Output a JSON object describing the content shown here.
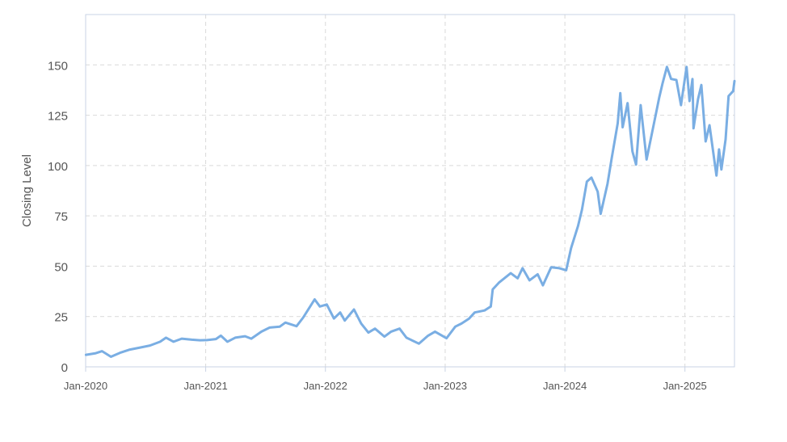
{
  "colors": {
    "line": "#7aaee3",
    "grid": "#d9d9d9",
    "plot_border": "#c9d3e4",
    "tick_text": "#555555"
  },
  "chart_data": {
    "type": "line",
    "title": "",
    "xlabel": "",
    "ylabel": "Closing Level",
    "x_type": "date",
    "xlim": [
      "2020-01-01",
      "2025-06-01"
    ],
    "ylim": [
      0,
      175
    ],
    "grid": true,
    "legend": "none",
    "x_ticks": [
      {
        "value": "2020-01-01",
        "label": "Jan-2020"
      },
      {
        "value": "2021-01-01",
        "label": "Jan-2021"
      },
      {
        "value": "2022-01-01",
        "label": "Jan-2022"
      },
      {
        "value": "2023-01-01",
        "label": "Jan-2023"
      },
      {
        "value": "2024-01-01",
        "label": "Jan-2024"
      },
      {
        "value": "2025-01-01",
        "label": "Jan-2025"
      }
    ],
    "y_ticks": [
      0,
      25,
      50,
      75,
      100,
      125,
      150
    ],
    "series": [
      {
        "values": [
          [
            "2020-01-02",
            6.0
          ],
          [
            "2020-02-01",
            6.8
          ],
          [
            "2020-02-20",
            7.8
          ],
          [
            "2020-03-18",
            5.0
          ],
          [
            "2020-04-15",
            7.0
          ],
          [
            "2020-05-15",
            8.6
          ],
          [
            "2020-06-15",
            9.6
          ],
          [
            "2020-07-15",
            10.6
          ],
          [
            "2020-08-15",
            12.5
          ],
          [
            "2020-09-02",
            14.5
          ],
          [
            "2020-09-25",
            12.5
          ],
          [
            "2020-10-20",
            14.0
          ],
          [
            "2020-11-20",
            13.5
          ],
          [
            "2020-12-15",
            13.2
          ],
          [
            "2021-01-05",
            13.3
          ],
          [
            "2021-02-01",
            13.8
          ],
          [
            "2021-02-16",
            15.5
          ],
          [
            "2021-03-08",
            12.5
          ],
          [
            "2021-04-01",
            14.5
          ],
          [
            "2021-05-01",
            15.2
          ],
          [
            "2021-05-20",
            14.0
          ],
          [
            "2021-06-20",
            17.5
          ],
          [
            "2021-07-15",
            19.5
          ],
          [
            "2021-08-15",
            20.0
          ],
          [
            "2021-09-01",
            22.0
          ],
          [
            "2021-10-05",
            20.2
          ],
          [
            "2021-10-25",
            24.5
          ],
          [
            "2021-11-29",
            33.5
          ],
          [
            "2021-12-15",
            30.0
          ],
          [
            "2022-01-05",
            31.0
          ],
          [
            "2022-01-27",
            24.0
          ],
          [
            "2022-02-15",
            27.0
          ],
          [
            "2022-03-01",
            23.0
          ],
          [
            "2022-03-29",
            28.5
          ],
          [
            "2022-04-20",
            21.5
          ],
          [
            "2022-05-12",
            17.0
          ],
          [
            "2022-06-01",
            19.0
          ],
          [
            "2022-06-30",
            15.0
          ],
          [
            "2022-07-20",
            17.5
          ],
          [
            "2022-08-15",
            19.0
          ],
          [
            "2022-09-05",
            14.5
          ],
          [
            "2022-10-13",
            11.5
          ],
          [
            "2022-11-10",
            15.5
          ],
          [
            "2022-12-01",
            17.5
          ],
          [
            "2023-01-05",
            14.2
          ],
          [
            "2023-02-01",
            20.0
          ],
          [
            "2023-02-20",
            21.5
          ],
          [
            "2023-03-15",
            24.0
          ],
          [
            "2023-04-01",
            27.0
          ],
          [
            "2023-05-01",
            28.0
          ],
          [
            "2023-05-20",
            30.0
          ],
          [
            "2023-05-26",
            38.5
          ],
          [
            "2023-06-15",
            42.0
          ],
          [
            "2023-07-20",
            46.5
          ],
          [
            "2023-08-10",
            44.0
          ],
          [
            "2023-08-25",
            49.0
          ],
          [
            "2023-09-15",
            43.0
          ],
          [
            "2023-10-10",
            46.0
          ],
          [
            "2023-10-26",
            40.5
          ],
          [
            "2023-11-20",
            49.5
          ],
          [
            "2023-12-15",
            49.0
          ],
          [
            "2024-01-05",
            48.0
          ],
          [
            "2024-01-20",
            59.0
          ],
          [
            "2024-02-10",
            70.0
          ],
          [
            "2024-02-22",
            78.0
          ],
          [
            "2024-03-08",
            92.0
          ],
          [
            "2024-03-22",
            94.0
          ],
          [
            "2024-04-10",
            87.0
          ],
          [
            "2024-04-19",
            76.0
          ],
          [
            "2024-05-10",
            91.0
          ],
          [
            "2024-05-23",
            104.0
          ],
          [
            "2024-06-10",
            121.0
          ],
          [
            "2024-06-18",
            136.0
          ],
          [
            "2024-06-25",
            119.0
          ],
          [
            "2024-07-10",
            131.0
          ],
          [
            "2024-07-25",
            107.0
          ],
          [
            "2024-08-05",
            100.5
          ],
          [
            "2024-08-19",
            130.0
          ],
          [
            "2024-09-06",
            103.0
          ],
          [
            "2024-09-30",
            122.0
          ],
          [
            "2024-10-15",
            134.0
          ],
          [
            "2024-10-25",
            141.0
          ],
          [
            "2024-11-07",
            149.0
          ],
          [
            "2024-11-20",
            143.0
          ],
          [
            "2024-12-06",
            142.5
          ],
          [
            "2024-12-20",
            130.0
          ],
          [
            "2025-01-06",
            149.0
          ],
          [
            "2025-01-15",
            132.0
          ],
          [
            "2025-01-24",
            143.0
          ],
          [
            "2025-01-27",
            118.5
          ],
          [
            "2025-02-10",
            133.0
          ],
          [
            "2025-02-20",
            140.0
          ],
          [
            "2025-03-05",
            112.0
          ],
          [
            "2025-03-17",
            120.0
          ],
          [
            "2025-04-07",
            95.0
          ],
          [
            "2025-04-15",
            108.0
          ],
          [
            "2025-04-22",
            98.0
          ],
          [
            "2025-05-05",
            113.0
          ],
          [
            "2025-05-14",
            134.5
          ],
          [
            "2025-05-28",
            137.0
          ],
          [
            "2025-06-01",
            142.0
          ]
        ]
      }
    ]
  }
}
